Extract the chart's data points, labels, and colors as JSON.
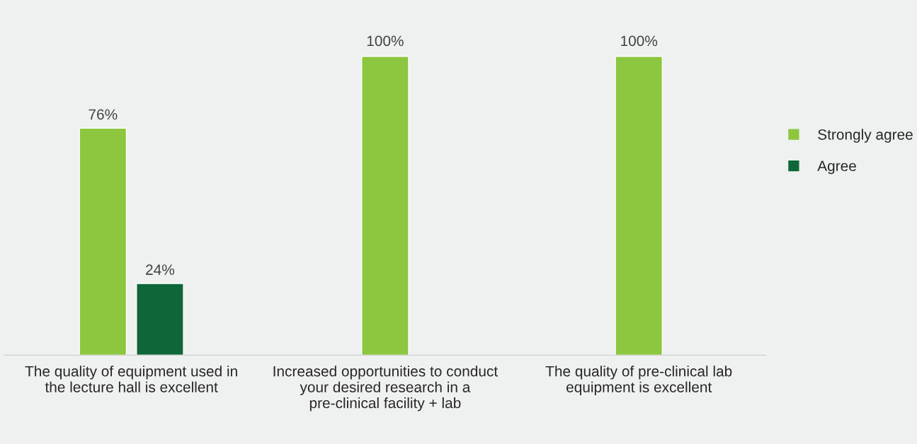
{
  "chart_data": {
    "type": "bar",
    "categories": [
      "The quality of equipment used in the lecture hall is excellent",
      "Increased opportunities to conduct your desired research in a pre-clinical facility + lab",
      "The quality of pre-clinical lab equipment is excellent"
    ],
    "series": [
      {
        "name": "Strongly agree",
        "color": "#8dc63f",
        "values": [
          76,
          100,
          100
        ],
        "value_labels": [
          "76%",
          "100%",
          "100%"
        ]
      },
      {
        "name": "Agree",
        "color": "#0f6638",
        "values": [
          24,
          null,
          null
        ],
        "value_labels": [
          "24%",
          null,
          null
        ]
      }
    ],
    "legend": "right",
    "grid": false
  }
}
